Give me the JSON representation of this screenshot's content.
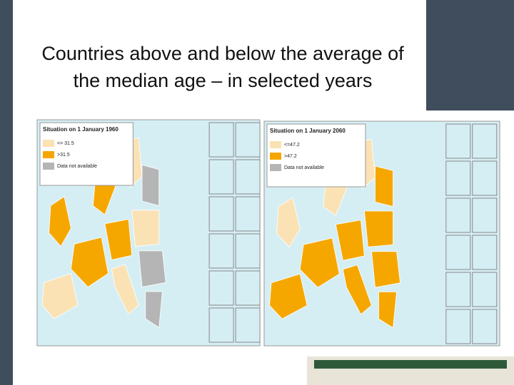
{
  "title_lines": [
    "Countries above and below the average of",
    "the median age – in selected years"
  ],
  "maps": [
    {
      "title": "Situation on 1 January 1960",
      "legend": [
        {
          "label": "<= 31.5",
          "color": "#fbe2b4"
        },
        {
          "label": ">31.5",
          "color": "#f5a700"
        },
        {
          "label": "Data not available",
          "color": "#b5b5b5"
        }
      ]
    },
    {
      "title": "Situation on 1 January 2060",
      "legend": [
        {
          "label": "<=47.2",
          "color": "#fbe2b4"
        },
        {
          "label": ">47.2",
          "color": "#f5a700"
        },
        {
          "label": "Data not available",
          "color": "#b5b5b5"
        }
      ]
    }
  ]
}
